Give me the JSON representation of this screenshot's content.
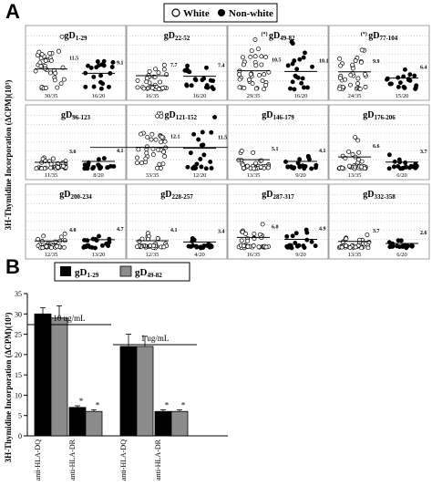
{
  "panelA": {
    "letter": "A",
    "ylabel": "3H-Thymidine Incorporation (ΔCPM)(10³)",
    "legend": {
      "white": "White",
      "nonwhite": "Non-white"
    },
    "chart_data": {
      "type": "scatter",
      "ylim": [
        0,
        35
      ],
      "yticks": [
        0,
        5,
        10,
        15,
        20,
        25,
        30,
        35
      ],
      "groups": [
        "White",
        "Non-white"
      ],
      "subplots": [
        {
          "title": "gD",
          "sub": "1-29",
          "mark": "",
          "white": {
            "median": 11.5,
            "frac": "30/35"
          },
          "nonwhite": {
            "median": 9.1,
            "frac": "16/20"
          }
        },
        {
          "title": "gD",
          "sub": "22-52",
          "mark": "",
          "white": {
            "median": 7.7,
            "frac": "16/35"
          },
          "nonwhite": {
            "median": 7.4,
            "frac": "16/20"
          }
        },
        {
          "title": "gD",
          "sub": "49-82",
          "mark": "(*)",
          "white": {
            "median": 10.5,
            "frac": "29/35"
          },
          "nonwhite": {
            "median": 10.1,
            "frac": "16/20"
          }
        },
        {
          "title": "gD",
          "sub": "77-104",
          "mark": "(*)",
          "white": {
            "median": 9.9,
            "frac": "24/35"
          },
          "nonwhite": {
            "median": 6.4,
            "frac": "15/20"
          }
        },
        {
          "title": "gD",
          "sub": "96-123",
          "mark": "",
          "white": {
            "median": 3.6,
            "frac": "11/35"
          },
          "nonwhite": {
            "median": 4.1,
            "frac": "8/20"
          }
        },
        {
          "title": "gD",
          "sub": "121-152",
          "mark": "(*)",
          "white": {
            "median": 12.1,
            "frac": "33/35"
          },
          "nonwhite": {
            "median": 11.5,
            "frac": "12/20"
          }
        },
        {
          "title": "gD",
          "sub": "146-179",
          "mark": "",
          "white": {
            "median": 5.1,
            "frac": "13/35"
          },
          "nonwhite": {
            "median": 4.1,
            "frac": "9/20"
          }
        },
        {
          "title": "gD",
          "sub": "176-206",
          "mark": "",
          "white": {
            "median": 6.6,
            "frac": "13/35"
          },
          "nonwhite": {
            "median": 3.7,
            "frac": "6/20"
          }
        },
        {
          "title": "gD",
          "sub": "200-234",
          "mark": "",
          "white": {
            "median": 4.0,
            "frac": "12/35"
          },
          "nonwhite": {
            "median": 4.7,
            "frac": "13/20"
          }
        },
        {
          "title": "gD",
          "sub": "228-257",
          "mark": "",
          "white": {
            "median": 4.1,
            "frac": "12/35"
          },
          "nonwhite": {
            "median": 3.4,
            "frac": "4/20"
          }
        },
        {
          "title": "gD",
          "sub": "287-317",
          "mark": "",
          "white": {
            "median": 6.0,
            "frac": "16/35"
          },
          "nonwhite": {
            "median": 4.9,
            "frac": "9/20"
          }
        },
        {
          "title": "gD",
          "sub": "332-358",
          "mark": "",
          "white": {
            "median": 3.7,
            "frac": "13/35"
          },
          "nonwhite": {
            "median": 2.6,
            "frac": "6/20"
          }
        }
      ]
    }
  },
  "panelB": {
    "letter": "B",
    "ylabel": "3H-Thymidine Incorporation (ΔCPM)(10³)",
    "chart_data": {
      "type": "bar",
      "ylim": [
        0,
        35
      ],
      "yticks": [
        0,
        5,
        10,
        15,
        20,
        25,
        30,
        35
      ],
      "series": [
        {
          "name": "gD",
          "sub": "1-29",
          "color": "#000000",
          "values": [
            30,
            7,
            22,
            6
          ],
          "errors": [
            1.5,
            0.4,
            3,
            0.4
          ]
        },
        {
          "name": "gD",
          "sub": "49-82",
          "color": "#8c8c8c",
          "values": [
            29,
            6,
            22,
            6
          ],
          "errors": [
            3,
            0.4,
            2.5,
            0.4
          ]
        }
      ],
      "categories": [
        "+ anti-HLA-DQ",
        "+ anti-HLA-DR",
        "+ anti-HLA-DQ",
        "+ anti-HLA-DR"
      ],
      "markers": [
        "",
        "*",
        "",
        "*"
      ],
      "concentrations": [
        {
          "label": "10 ug/mL",
          "covers": [
            0,
            1
          ]
        },
        {
          "label": "1 ug/mL",
          "covers": [
            2,
            3
          ]
        }
      ]
    }
  }
}
